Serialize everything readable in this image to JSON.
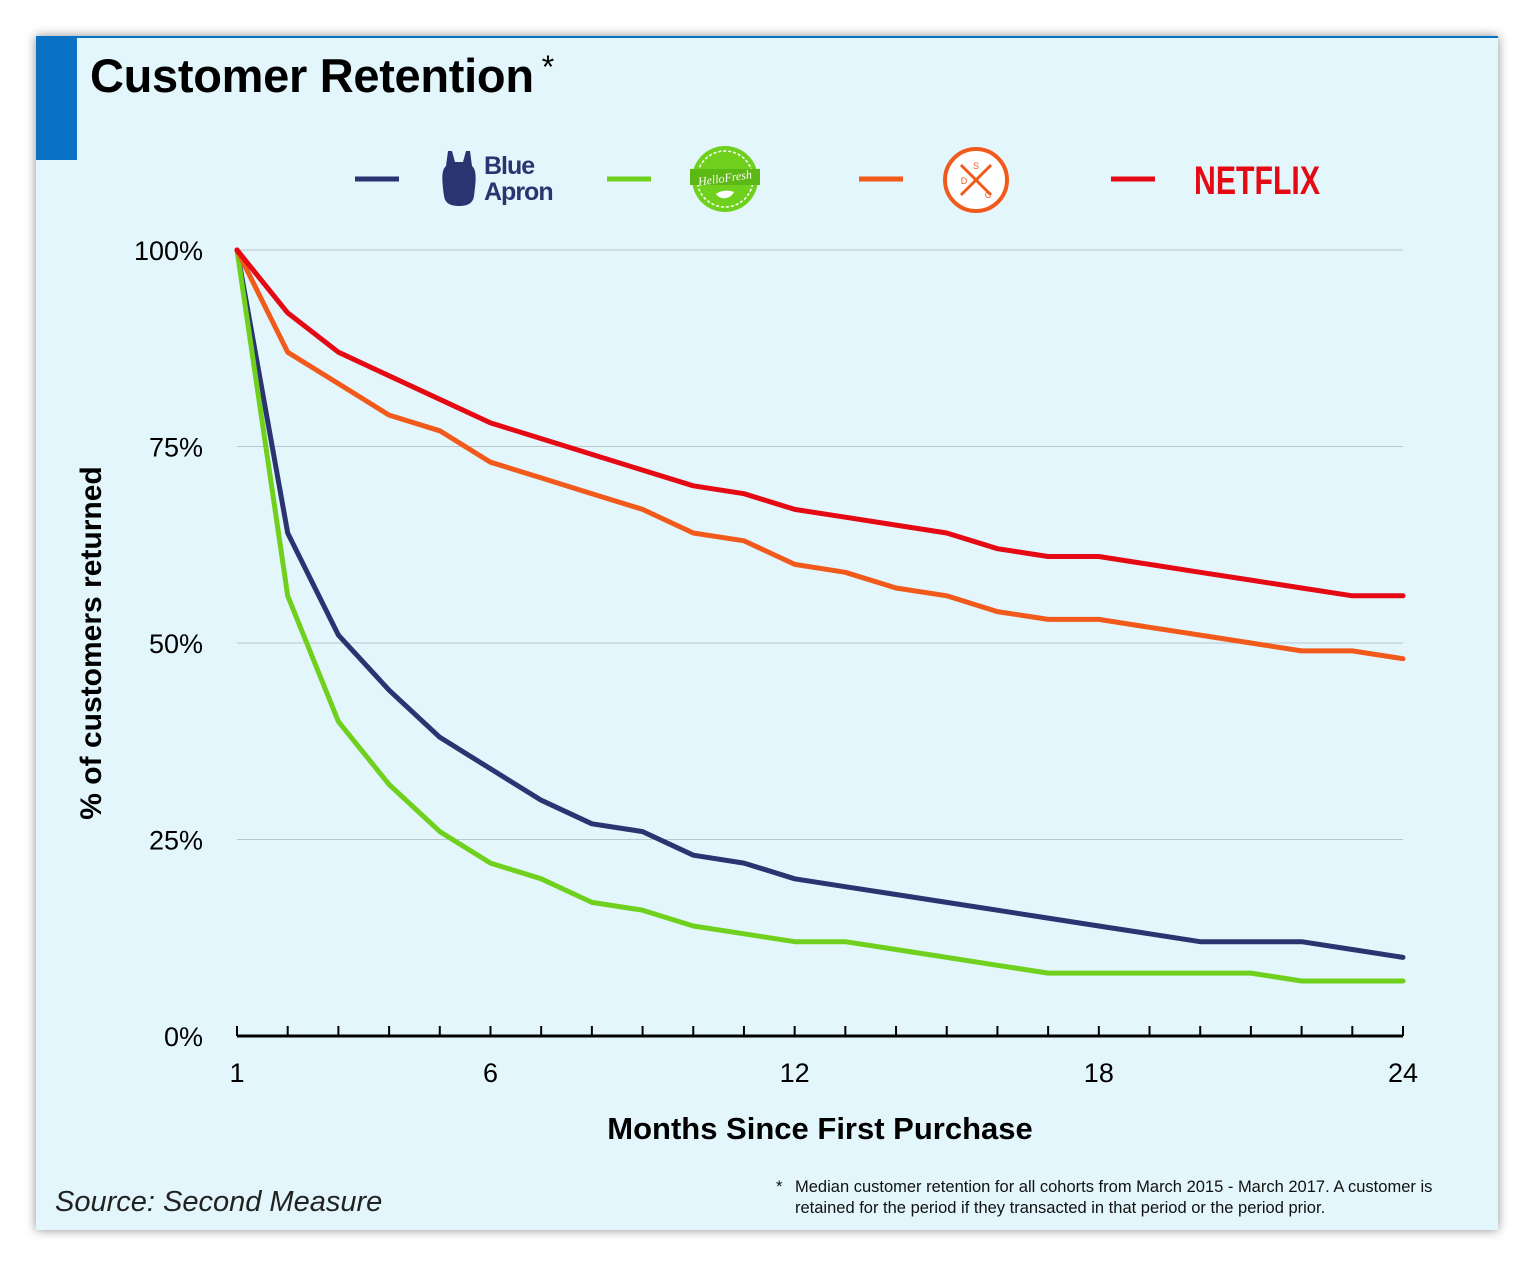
{
  "title": "Customer Retention",
  "title_mark": "*",
  "source": "Source: Second Measure",
  "footnote": {
    "mark": "*",
    "text": "Median customer retention for all cohorts from March 2015 - March 2017. A customer is retained for the period if they transacted in that period or the period prior."
  },
  "legend_logos": {
    "blue_apron_line1": "Blue",
    "blue_apron_line2": "Apron",
    "hellofresh": "HelloFresh",
    "dsc_letters": [
      "S",
      "D",
      "C"
    ],
    "netflix": "NETFLIX"
  },
  "colors": {
    "background": "#e2f6fb",
    "accent": "#0a72c4",
    "grid": "#b9c6cc"
  },
  "chart_data": {
    "type": "line",
    "title": "Customer Retention",
    "xlabel": "Months Since First Purchase",
    "ylabel": "% of customers returned",
    "xlim": [
      1,
      24
    ],
    "ylim": [
      0,
      100
    ],
    "x_ticks": [
      1,
      6,
      12,
      18,
      24
    ],
    "y_ticks": [
      0,
      25,
      50,
      75,
      100
    ],
    "y_tick_labels": [
      "0%",
      "25%",
      "50%",
      "75%",
      "100%"
    ],
    "grid": "horizontal",
    "legend_position": "top",
    "x": [
      1,
      2,
      3,
      4,
      5,
      6,
      7,
      8,
      9,
      10,
      11,
      12,
      13,
      14,
      15,
      16,
      17,
      18,
      19,
      20,
      21,
      22,
      23,
      24
    ],
    "series": [
      {
        "color": "#2a3470",
        "legend_logo": "blue-apron",
        "values": [
          100,
          64,
          51,
          44,
          38,
          34,
          30,
          27,
          26,
          23,
          22,
          20,
          19,
          18,
          17,
          16,
          15,
          14,
          13,
          12,
          12,
          12,
          11,
          10
        ]
      },
      {
        "color": "#6fd11e",
        "legend_logo": "hellofresh",
        "values": [
          100,
          56,
          40,
          32,
          26,
          22,
          20,
          17,
          16,
          14,
          13,
          12,
          12,
          11,
          10,
          9,
          8,
          8,
          8,
          8,
          8,
          7,
          7,
          7
        ]
      },
      {
        "color": "#f25a1b",
        "legend_logo": "dollar-shave-club",
        "values": [
          100,
          87,
          83,
          79,
          77,
          73,
          71,
          69,
          67,
          64,
          63,
          60,
          59,
          57,
          56,
          54,
          53,
          53,
          52,
          51,
          50,
          49,
          49,
          48
        ]
      },
      {
        "color": "#e50914",
        "legend_logo": "netflix",
        "values": [
          100,
          92,
          87,
          84,
          81,
          78,
          76,
          74,
          72,
          70,
          69,
          67,
          66,
          65,
          64,
          62,
          61,
          61,
          60,
          59,
          58,
          57,
          56,
          56
        ]
      }
    ]
  }
}
